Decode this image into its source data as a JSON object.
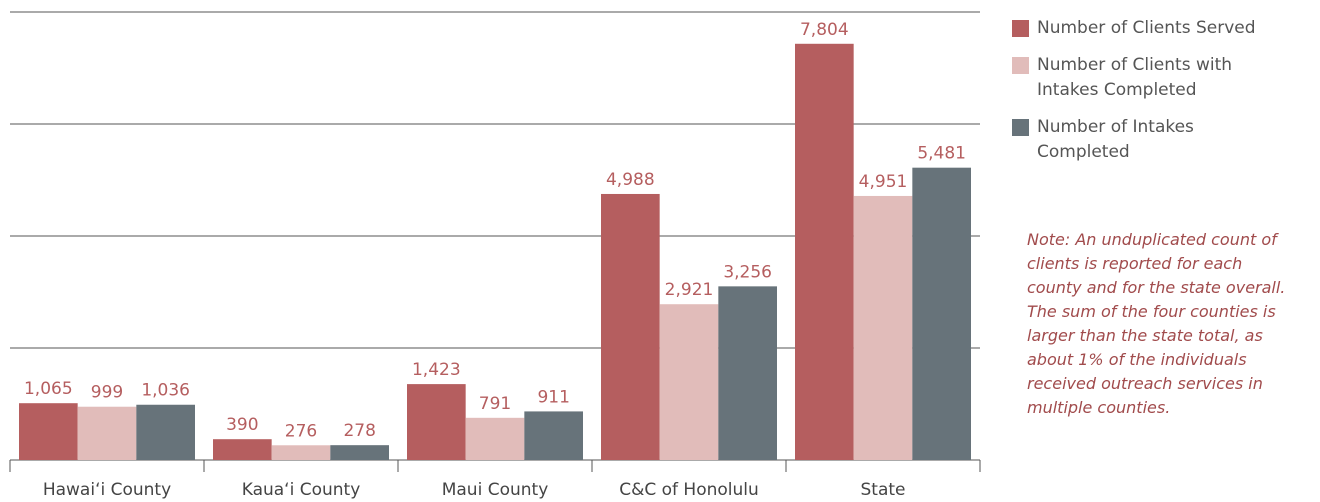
{
  "chart_data": {
    "type": "bar",
    "categories": [
      "Hawai‘i County",
      "Kaua‘i County",
      "Maui County",
      "C&C of Honolulu",
      "State"
    ],
    "series": [
      {
        "name": "Number of Clients Served",
        "color": "#b55e5f",
        "values": [
          1065,
          390,
          1423,
          4988,
          7804
        ],
        "value_labels": [
          "1,065",
          "390",
          "1,423",
          "4,988",
          "7,804"
        ]
      },
      {
        "name": "Number of Clients with Intakes Completed",
        "color": "#e1bcba",
        "values": [
          999,
          276,
          791,
          2921,
          4951
        ],
        "value_labels": [
          "999",
          "276",
          "791",
          "2,921",
          "4,951"
        ]
      },
      {
        "name": "Number of Intakes Completed",
        "color": "#67737a",
        "values": [
          1036,
          278,
          911,
          3256,
          5481
        ],
        "value_labels": [
          "1,036",
          "278",
          "911",
          "3,256",
          "5,481"
        ]
      }
    ],
    "ylim": [
      0,
      8400
    ],
    "yticks": [
      0,
      2100,
      4200,
      6300,
      8400
    ],
    "grid": true,
    "annotation": "Note: An unduplicated count of clients is reported for each county and for the state overall. The sum of the four counties is larger than the state total, as about 1% of the individuals received outreach services in multiple counties."
  }
}
